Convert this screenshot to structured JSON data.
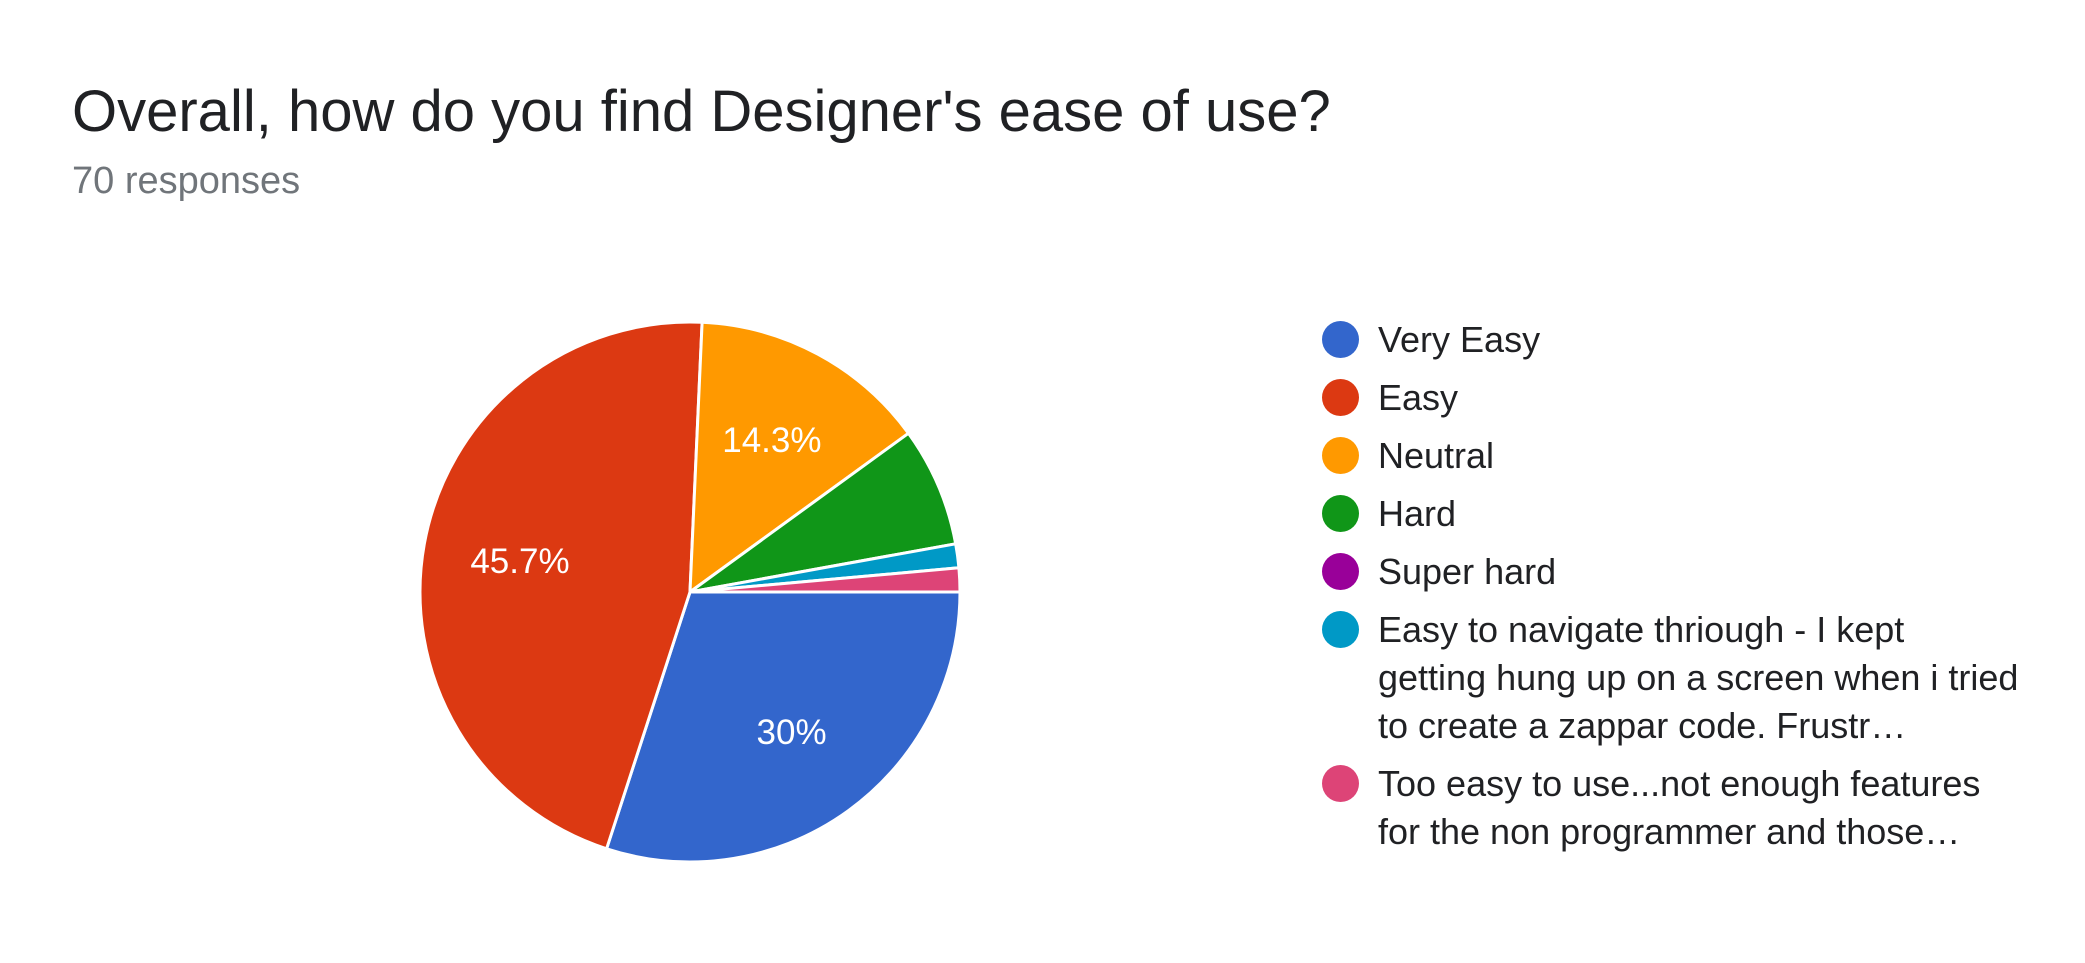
{
  "header": {
    "title": "Overall, how do you find Designer's ease of use?",
    "responses": "70 responses"
  },
  "chart_data": {
    "type": "pie",
    "title": "Overall, how do you find Designer's ease of use?",
    "subtitle": "70 responses",
    "total": 70,
    "legend_position": "right",
    "slices": [
      {
        "label": "Very Easy",
        "value": 21,
        "percent": 30.0,
        "percent_label": "30%",
        "color": "#3366cc"
      },
      {
        "label": "Easy",
        "value": 32,
        "percent": 45.7,
        "percent_label": "45.7%",
        "color": "#dc3912"
      },
      {
        "label": "Neutral",
        "value": 10,
        "percent": 14.3,
        "percent_label": "14.3%",
        "color": "#ff9900"
      },
      {
        "label": "Hard",
        "value": 5,
        "percent": 7.1,
        "percent_label": "",
        "color": "#109618"
      },
      {
        "label": "Super hard",
        "value": 0,
        "percent": 0.0,
        "percent_label": "",
        "color": "#990099"
      },
      {
        "label": "Easy to navigate thriough - I kept getting hung up on a screen when i tried to create a zappar code. Frustr…",
        "value": 1,
        "percent": 1.4,
        "percent_label": "",
        "color": "#0099c6"
      },
      {
        "label": "Too easy to use...not enough features for the non programmer and those…",
        "value": 1,
        "percent": 1.4,
        "percent_label": "",
        "color": "#dd4477"
      }
    ]
  }
}
